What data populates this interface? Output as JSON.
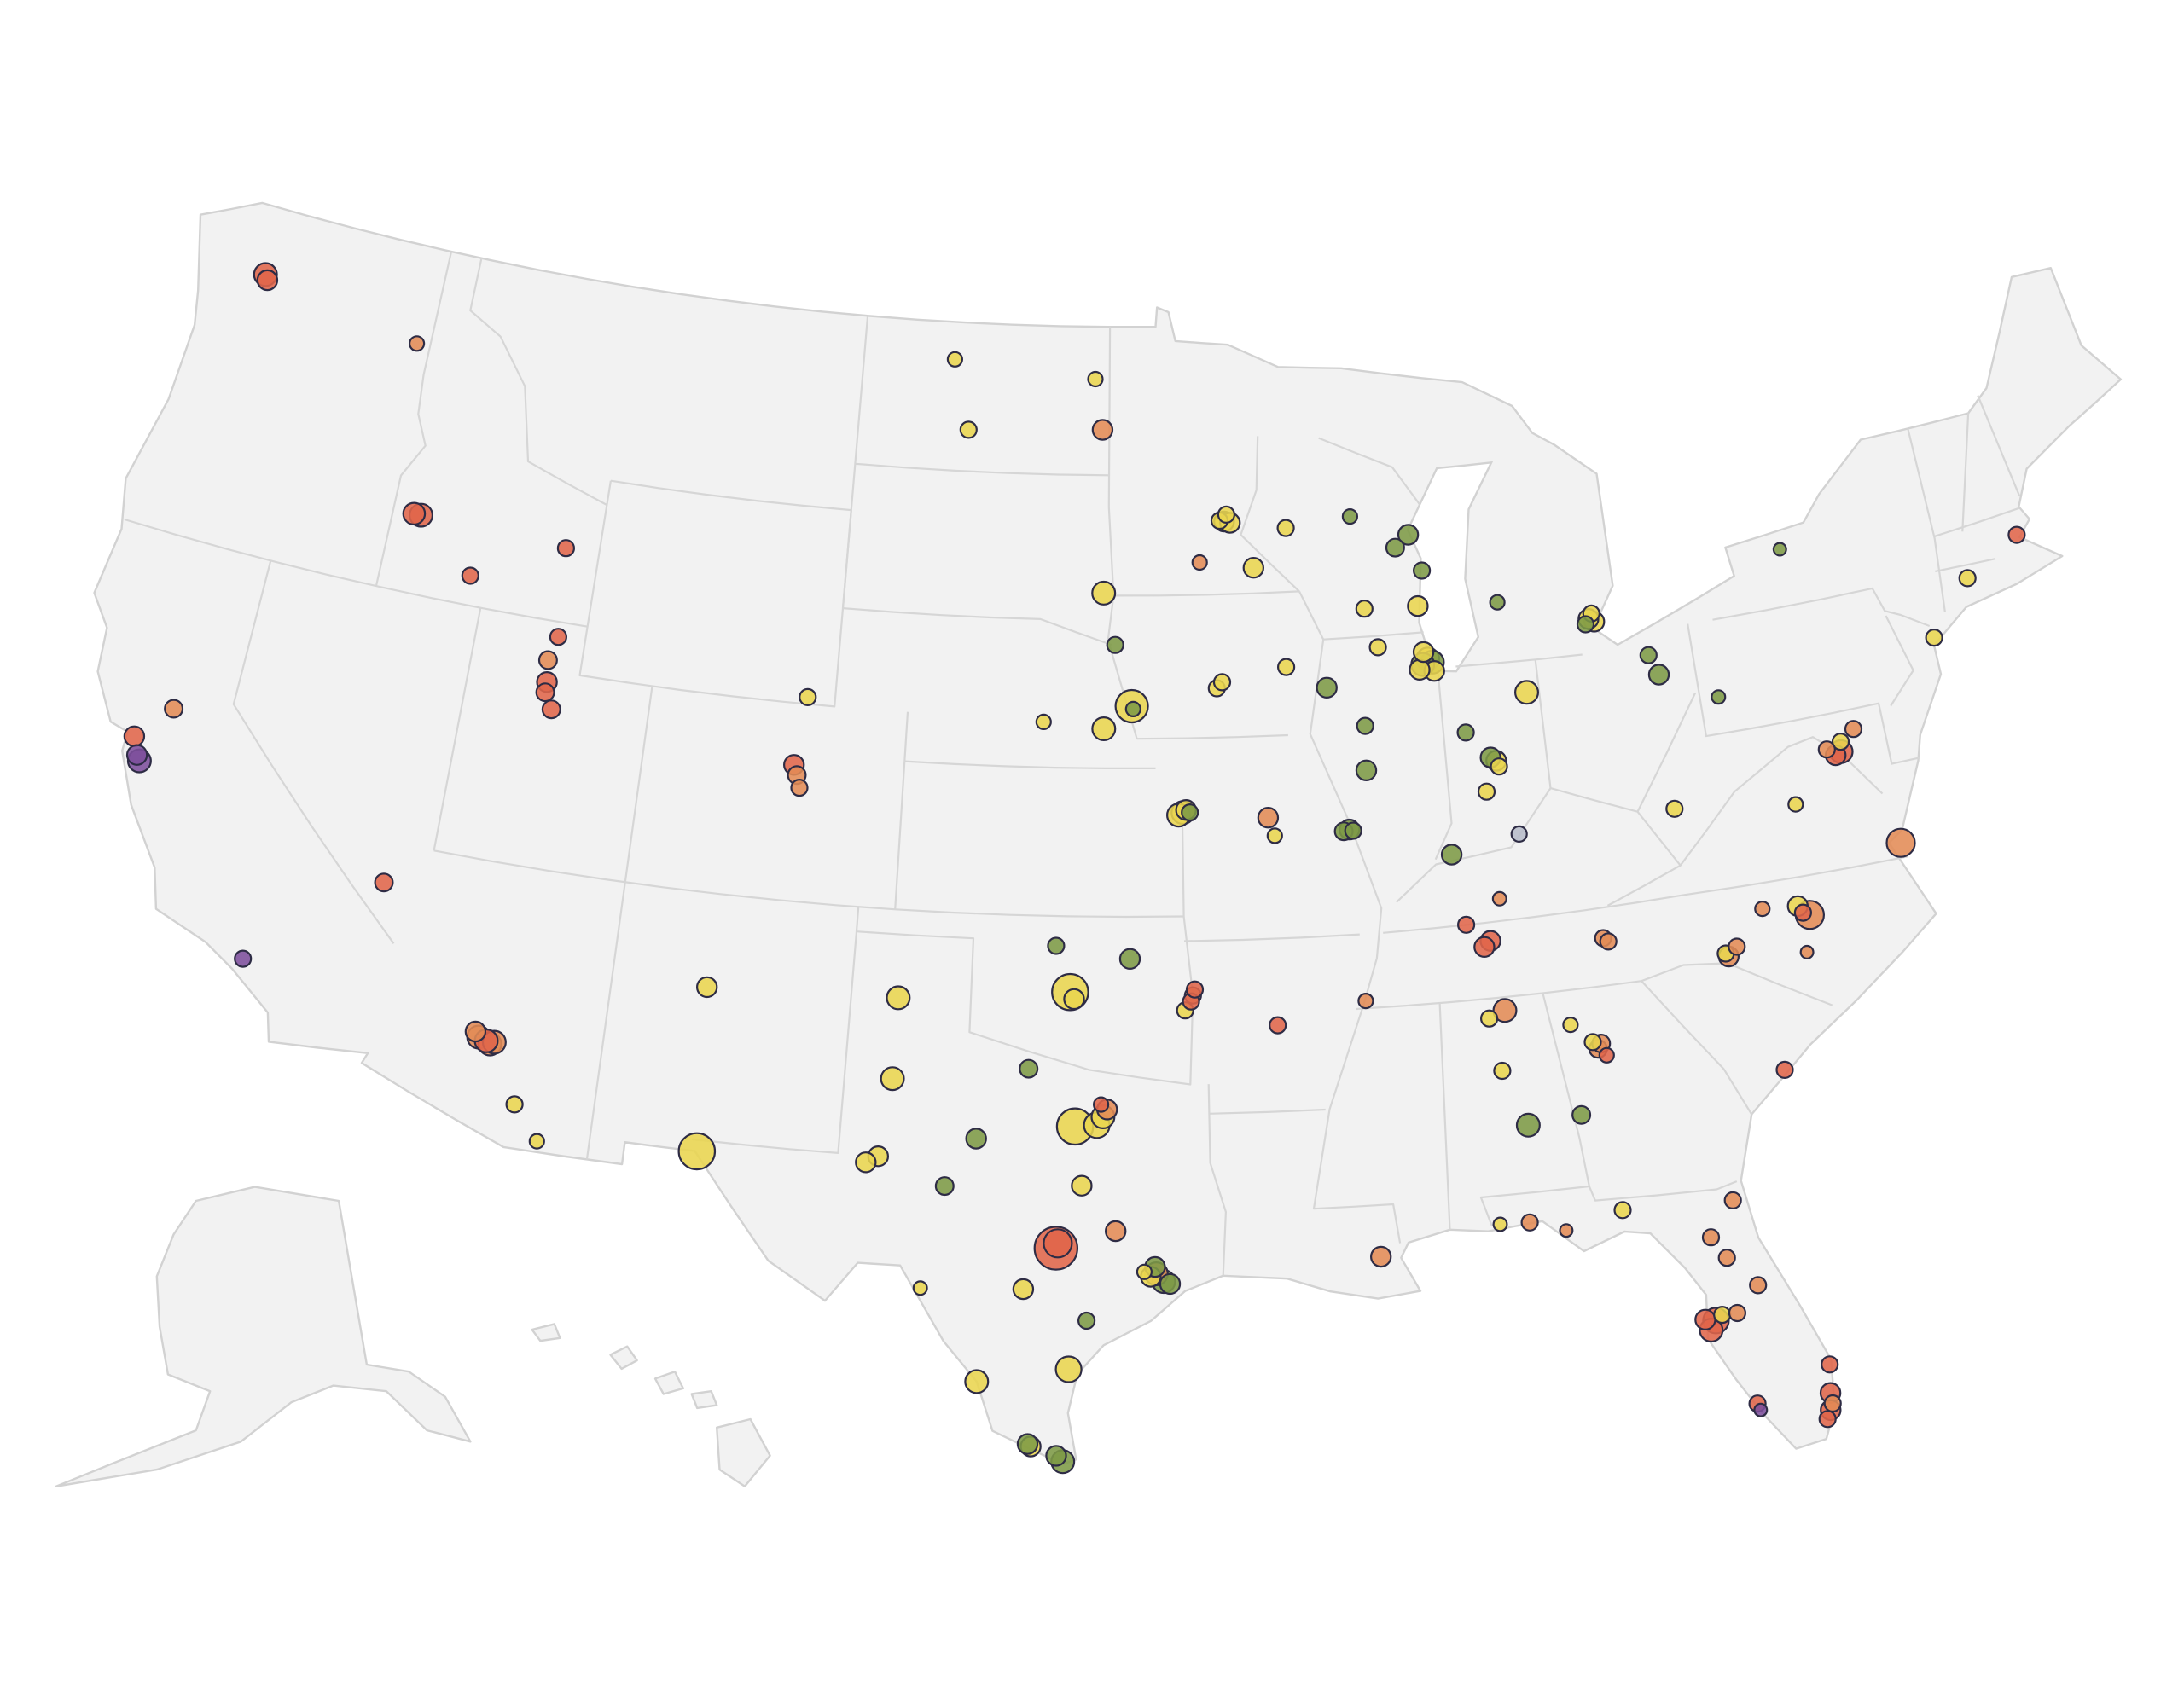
{
  "map": {
    "type": "bubble-map",
    "series": [
      {
        "color": "#e9d54f",
        "points": [
          {
            "lon": -110.97,
            "lat": 32.22,
            "size": 1
          },
          {
            "lon": -110.3,
            "lat": 31.55,
            "size": 0.8
          },
          {
            "lon": -106.65,
            "lat": 35.1,
            "size": 1.5
          },
          {
            "lon": -106.45,
            "lat": 31.77,
            "size": 5
          },
          {
            "lon": -104.8,
            "lat": 41.14,
            "size": 1
          },
          {
            "lon": -100.78,
            "lat": 46.8,
            "size": 1
          },
          {
            "lon": -101.3,
            "lat": 48.23,
            "size": 0.8
          },
          {
            "lon": -97.03,
            "lat": 47.92,
            "size": 0.8
          },
          {
            "lon": -96.73,
            "lat": 43.55,
            "size": 2
          },
          {
            "lon": -93.27,
            "lat": 44.98,
            "size": 1.5
          },
          {
            "lon": -93.1,
            "lat": 44.95,
            "size": 1.5
          },
          {
            "lon": -93.4,
            "lat": 45.0,
            "size": 1
          },
          {
            "lon": -93.2,
            "lat": 45.12,
            "size": 1
          },
          {
            "lon": -92.47,
            "lat": 44.02,
            "size": 1.5
          },
          {
            "lon": -91.5,
            "lat": 44.8,
            "size": 1
          },
          {
            "lon": -89.4,
            "lat": 43.07,
            "size": 1
          },
          {
            "lon": -87.9,
            "lat": 43.04,
            "size": 1.5
          },
          {
            "lon": -87.75,
            "lat": 41.95,
            "size": 2
          },
          {
            "lon": -87.6,
            "lat": 41.7,
            "size": 1.5
          },
          {
            "lon": -88.0,
            "lat": 41.75,
            "size": 1.5
          },
          {
            "lon": -87.85,
            "lat": 42.1,
            "size": 1.5
          },
          {
            "lon": -89.1,
            "lat": 42.27,
            "size": 1
          },
          {
            "lon": -91.67,
            "lat": 41.98,
            "size": 1
          },
          {
            "lon": -95.94,
            "lat": 41.26,
            "size": 4
          },
          {
            "lon": -96.7,
            "lat": 40.8,
            "size": 2
          },
          {
            "lon": -93.6,
            "lat": 41.6,
            "size": 1
          },
          {
            "lon": -93.45,
            "lat": 41.72,
            "size": 1
          },
          {
            "lon": -98.34,
            "lat": 40.92,
            "size": 0.8
          },
          {
            "lon": -94.58,
            "lat": 39.1,
            "size": 2
          },
          {
            "lon": -94.7,
            "lat": 39.05,
            "size": 2
          },
          {
            "lon": -94.5,
            "lat": 39.15,
            "size": 1.5
          },
          {
            "lon": -92.17,
            "lat": 38.58,
            "size": 0.8
          },
          {
            "lon": -86.16,
            "lat": 39.77,
            "size": 1.5
          },
          {
            "lon": -86.1,
            "lat": 39.65,
            "size": 1
          },
          {
            "lon": -86.5,
            "lat": 39.17,
            "size": 1
          },
          {
            "lon": -85.14,
            "lat": 41.08,
            "size": 2
          },
          {
            "lon": -83.05,
            "lat": 42.33,
            "size": 1.5
          },
          {
            "lon": -83.2,
            "lat": 42.4,
            "size": 1.5
          },
          {
            "lon": -83.1,
            "lat": 42.5,
            "size": 1
          },
          {
            "lon": -81.63,
            "lat": 38.35,
            "size": 1
          },
          {
            "lon": -78.48,
            "lat": 38.03,
            "size": 0.8
          },
          {
            "lon": -77.0,
            "lat": 39.1,
            "size": 1
          },
          {
            "lon": -73.95,
            "lat": 40.75,
            "size": 1
          },
          {
            "lon": -72.68,
            "lat": 41.76,
            "size": 1
          },
          {
            "lon": -78.9,
            "lat": 36.0,
            "size": 1.5
          },
          {
            "lon": -80.9,
            "lat": 35.3,
            "size": 1
          },
          {
            "lon": -84.5,
            "lat": 33.9,
            "size": 1
          },
          {
            "lon": -85.0,
            "lat": 34.3,
            "size": 0.8
          },
          {
            "lon": -87.0,
            "lat": 34.6,
            "size": 1
          },
          {
            "lon": -86.8,
            "lat": 33.52,
            "size": 1
          },
          {
            "lon": -84.28,
            "lat": 30.44,
            "size": 1
          },
          {
            "lon": -87.2,
            "lat": 30.42,
            "size": 0.7
          },
          {
            "lon": -82.3,
            "lat": 28.05,
            "size": 1
          },
          {
            "lon": -97.33,
            "lat": 32.75,
            "size": 5
          },
          {
            "lon": -96.8,
            "lat": 32.78,
            "size": 2.5
          },
          {
            "lon": -96.65,
            "lat": 32.95,
            "size": 2
          },
          {
            "lon": -97.5,
            "lat": 35.47,
            "size": 5
          },
          {
            "lon": -97.4,
            "lat": 35.33,
            "size": 1.5
          },
          {
            "lon": -94.6,
            "lat": 35.1,
            "size": 1
          },
          {
            "lon": -101.85,
            "lat": 33.58,
            "size": 2
          },
          {
            "lon": -101.83,
            "lat": 35.22,
            "size": 2
          },
          {
            "lon": -102.08,
            "lat": 31.99,
            "size": 1.5
          },
          {
            "lon": -102.37,
            "lat": 31.85,
            "size": 1.5
          },
          {
            "lon": -97.15,
            "lat": 31.55,
            "size": 1.5
          },
          {
            "lon": -98.49,
            "lat": 29.42,
            "size": 1.5
          },
          {
            "lon": -95.5,
            "lat": 29.7,
            "size": 1.5
          },
          {
            "lon": -95.65,
            "lat": 29.8,
            "size": 0.8
          },
          {
            "lon": -100.9,
            "lat": 29.36,
            "size": 0.7
          },
          {
            "lon": -99.5,
            "lat": 27.5,
            "size": 2
          },
          {
            "lon": -97.4,
            "lat": 27.8,
            "size": 2.5
          },
          {
            "lon": -98.23,
            "lat": 26.2,
            "size": 1.5
          }
        ]
      },
      {
        "color": "#7d9a45",
        "points": [
          {
            "lon": -89.63,
            "lat": 44.96,
            "size": 0.8
          },
          {
            "lon": -88.0,
            "lat": 44.5,
            "size": 1.5
          },
          {
            "lon": -88.4,
            "lat": 44.26,
            "size": 1.2
          },
          {
            "lon": -87.7,
            "lat": 43.75,
            "size": 1
          },
          {
            "lon": -87.63,
            "lat": 41.88,
            "size": 2
          },
          {
            "lon": -87.9,
            "lat": 41.85,
            "size": 2
          },
          {
            "lon": -90.58,
            "lat": 41.52,
            "size": 1.5
          },
          {
            "lon": -96.4,
            "lat": 42.5,
            "size": 1
          },
          {
            "lon": -95.9,
            "lat": 41.2,
            "size": 0.8
          },
          {
            "lon": -94.4,
            "lat": 39.1,
            "size": 1
          },
          {
            "lon": -90.2,
            "lat": 38.63,
            "size": 1.5
          },
          {
            "lon": -90.35,
            "lat": 38.6,
            "size": 1.2
          },
          {
            "lon": -90.1,
            "lat": 38.6,
            "size": 1
          },
          {
            "lon": -89.6,
            "lat": 40.7,
            "size": 1
          },
          {
            "lon": -89.65,
            "lat": 39.8,
            "size": 1.5
          },
          {
            "lon": -86.3,
            "lat": 39.85,
            "size": 1.5
          },
          {
            "lon": -86.9,
            "lat": 40.4,
            "size": 1
          },
          {
            "lon": -87.57,
            "lat": 37.97,
            "size": 1.5
          },
          {
            "lon": -83.3,
            "lat": 42.3,
            "size": 1
          },
          {
            "lon": -85.67,
            "lat": 42.96,
            "size": 0.8
          },
          {
            "lon": -81.7,
            "lat": 41.5,
            "size": 1
          },
          {
            "lon": -81.5,
            "lat": 41.08,
            "size": 1.5
          },
          {
            "lon": -80.0,
            "lat": 40.44,
            "size": 0.7
          },
          {
            "lon": -77.6,
            "lat": 43.16,
            "size": 0.6
          },
          {
            "lon": -86.3,
            "lat": 32.37,
            "size": 2
          },
          {
            "lon": -84.99,
            "lat": 32.46,
            "size": 1.2
          },
          {
            "lon": -95.99,
            "lat": 36.15,
            "size": 1.5
          },
          {
            "lon": -97.88,
            "lat": 36.4,
            "size": 1
          },
          {
            "lon": -98.5,
            "lat": 33.9,
            "size": 1.2
          },
          {
            "lon": -99.73,
            "lat": 32.45,
            "size": 1.5
          },
          {
            "lon": -100.44,
            "lat": 31.46,
            "size": 1.2
          },
          {
            "lon": -95.4,
            "lat": 29.9,
            "size": 1.5
          },
          {
            "lon": -95.2,
            "lat": 29.6,
            "size": 2
          },
          {
            "lon": -95.05,
            "lat": 29.55,
            "size": 1.5
          },
          {
            "lon": -97.0,
            "lat": 28.8,
            "size": 1
          },
          {
            "lon": -98.3,
            "lat": 26.25,
            "size": 1.5
          },
          {
            "lon": -97.5,
            "lat": 25.9,
            "size": 2
          },
          {
            "lon": -97.65,
            "lat": 26.02,
            "size": 1.5
          }
        ]
      },
      {
        "color": "#e28b55",
        "points": [
          {
            "lon": -117.4,
            "lat": 47.0,
            "size": 0.8
          },
          {
            "lon": -111.97,
            "lat": 41.2,
            "size": 1.2
          },
          {
            "lon": -121.5,
            "lat": 38.6,
            "size": 1.2
          },
          {
            "lon": -112.1,
            "lat": 33.45,
            "size": 2
          },
          {
            "lon": -111.8,
            "lat": 33.35,
            "size": 2
          },
          {
            "lon": -112.2,
            "lat": 33.55,
            "size": 1.5
          },
          {
            "lon": -111.7,
            "lat": 33.4,
            "size": 2
          },
          {
            "lon": -104.9,
            "lat": 39.55,
            "size": 1.2
          },
          {
            "lon": -104.8,
            "lat": 39.3,
            "size": 1
          },
          {
            "lon": -96.8,
            "lat": 46.88,
            "size": 1.5
          },
          {
            "lon": -94.0,
            "lat": 44.16,
            "size": 0.8
          },
          {
            "lon": -92.33,
            "lat": 38.95,
            "size": 1.5
          },
          {
            "lon": -86.44,
            "lat": 36.99,
            "size": 0.7
          },
          {
            "lon": -77.4,
            "lat": 39.0,
            "size": 1
          },
          {
            "lon": -76.6,
            "lat": 39.3,
            "size": 1
          },
          {
            "lon": -76.0,
            "lat": 36.85,
            "size": 3
          },
          {
            "lon": -83.92,
            "lat": 35.96,
            "size": 1
          },
          {
            "lon": -83.8,
            "lat": 35.88,
            "size": 1
          },
          {
            "lon": -78.64,
            "lat": 35.78,
            "size": 3
          },
          {
            "lon": -79.8,
            "lat": 36.07,
            "size": 0.8
          },
          {
            "lon": -80.84,
            "lat": 35.23,
            "size": 1.5
          },
          {
            "lon": -80.6,
            "lat": 35.4,
            "size": 1
          },
          {
            "lon": -78.88,
            "lat": 35.05,
            "size": 0.6
          },
          {
            "lon": -84.39,
            "lat": 33.75,
            "size": 1.2
          },
          {
            "lon": -84.3,
            "lat": 33.85,
            "size": 1.2
          },
          {
            "lon": -90.05,
            "lat": 35.15,
            "size": 0.8
          },
          {
            "lon": -86.59,
            "lat": 34.73,
            "size": 2
          },
          {
            "lon": -85.66,
            "lat": 30.16,
            "size": 0.6
          },
          {
            "lon": -86.5,
            "lat": 30.4,
            "size": 1
          },
          {
            "lon": -90.07,
            "lat": 29.95,
            "size": 1.5
          },
          {
            "lon": -81.66,
            "lat": 30.33,
            "size": 1
          },
          {
            "lon": -82.3,
            "lat": 29.65,
            "size": 1
          },
          {
            "lon": -81.38,
            "lat": 28.54,
            "size": 1
          },
          {
            "lon": -82.0,
            "lat": 29.19,
            "size": 1
          },
          {
            "lon": -81.95,
            "lat": 28.04,
            "size": 1
          },
          {
            "lon": -80.13,
            "lat": 25.9,
            "size": 1
          },
          {
            "lon": -96.55,
            "lat": 33.1,
            "size": 1.5
          },
          {
            "lon": -94.4,
            "lat": 35.4,
            "size": 1
          },
          {
            "lon": -96.33,
            "lat": 30.63,
            "size": 1.5
          },
          {
            "lon": -95.37,
            "lat": 29.76,
            "size": 2
          }
        ]
      },
      {
        "color": "#e0654a",
        "points": [
          {
            "lon": -122.3,
            "lat": 47.6,
            "size": 2
          },
          {
            "lon": -122.2,
            "lat": 47.5,
            "size": 1.5
          },
          {
            "lon": -116.2,
            "lat": 43.6,
            "size": 2
          },
          {
            "lon": -116.4,
            "lat": 43.6,
            "size": 1.8
          },
          {
            "lon": -114.5,
            "lat": 42.6,
            "size": 1
          },
          {
            "lon": -112.0,
            "lat": 43.5,
            "size": 1
          },
          {
            "lon": -111.8,
            "lat": 41.7,
            "size": 1
          },
          {
            "lon": -111.9,
            "lat": 40.76,
            "size": 1.5
          },
          {
            "lon": -111.66,
            "lat": 40.23,
            "size": 1.2
          },
          {
            "lon": -111.9,
            "lat": 40.55,
            "size": 1.2
          },
          {
            "lon": -122.3,
            "lat": 37.85,
            "size": 1.5
          },
          {
            "lon": -115.15,
            "lat": 36.17,
            "size": 1.2
          },
          {
            "lon": -111.9,
            "lat": 33.4,
            "size": 2
          },
          {
            "lon": -105.0,
            "lat": 39.75,
            "size": 1.5
          },
          {
            "lon": -77.04,
            "lat": 38.9,
            "size": 2
          },
          {
            "lon": -77.2,
            "lat": 38.85,
            "size": 1.5
          },
          {
            "lon": -71.06,
            "lat": 42.36,
            "size": 1
          },
          {
            "lon": -86.78,
            "lat": 36.16,
            "size": 1.5
          },
          {
            "lon": -86.95,
            "lat": 36.05,
            "size": 1.5
          },
          {
            "lon": -87.36,
            "lat": 36.53,
            "size": 1
          },
          {
            "lon": -78.8,
            "lat": 35.85,
            "size": 1
          },
          {
            "lon": -79.93,
            "lat": 32.78,
            "size": 1
          },
          {
            "lon": -84.2,
            "lat": 33.6,
            "size": 0.8
          },
          {
            "lon": -82.46,
            "lat": 27.95,
            "size": 2.5
          },
          {
            "lon": -82.6,
            "lat": 27.77,
            "size": 2
          },
          {
            "lon": -82.7,
            "lat": 28.0,
            "size": 1.5
          },
          {
            "lon": -80.05,
            "lat": 26.7,
            "size": 1
          },
          {
            "lon": -80.14,
            "lat": 26.12,
            "size": 1.5
          },
          {
            "lon": -80.2,
            "lat": 25.77,
            "size": 1.5
          },
          {
            "lon": -80.3,
            "lat": 25.6,
            "size": 1
          },
          {
            "lon": -81.8,
            "lat": 26.14,
            "size": 1
          },
          {
            "lon": -92.29,
            "lat": 34.75,
            "size": 1
          },
          {
            "lon": -94.45,
            "lat": 35.28,
            "size": 1
          },
          {
            "lon": -94.35,
            "lat": 35.52,
            "size": 1
          },
          {
            "lon": -96.7,
            "lat": 33.2,
            "size": 0.8
          },
          {
            "lon": -97.74,
            "lat": 30.27,
            "size": 7
          },
          {
            "lon": -97.7,
            "lat": 30.37,
            "size": 3
          }
        ]
      },
      {
        "color": "#7d4f9c",
        "points": [
          {
            "lon": -122.0,
            "lat": 37.4,
            "size": 2
          },
          {
            "lon": -122.1,
            "lat": 37.5,
            "size": 1.5
          },
          {
            "lon": -118.2,
            "lat": 34.05,
            "size": 1
          },
          {
            "lon": -81.75,
            "lat": 26.0,
            "size": 0.6
          }
        ]
      },
      {
        "color": "#b7bcc9",
        "points": [
          {
            "lon": -85.76,
            "lat": 38.25,
            "size": 0.9
          }
        ]
      }
    ]
  }
}
